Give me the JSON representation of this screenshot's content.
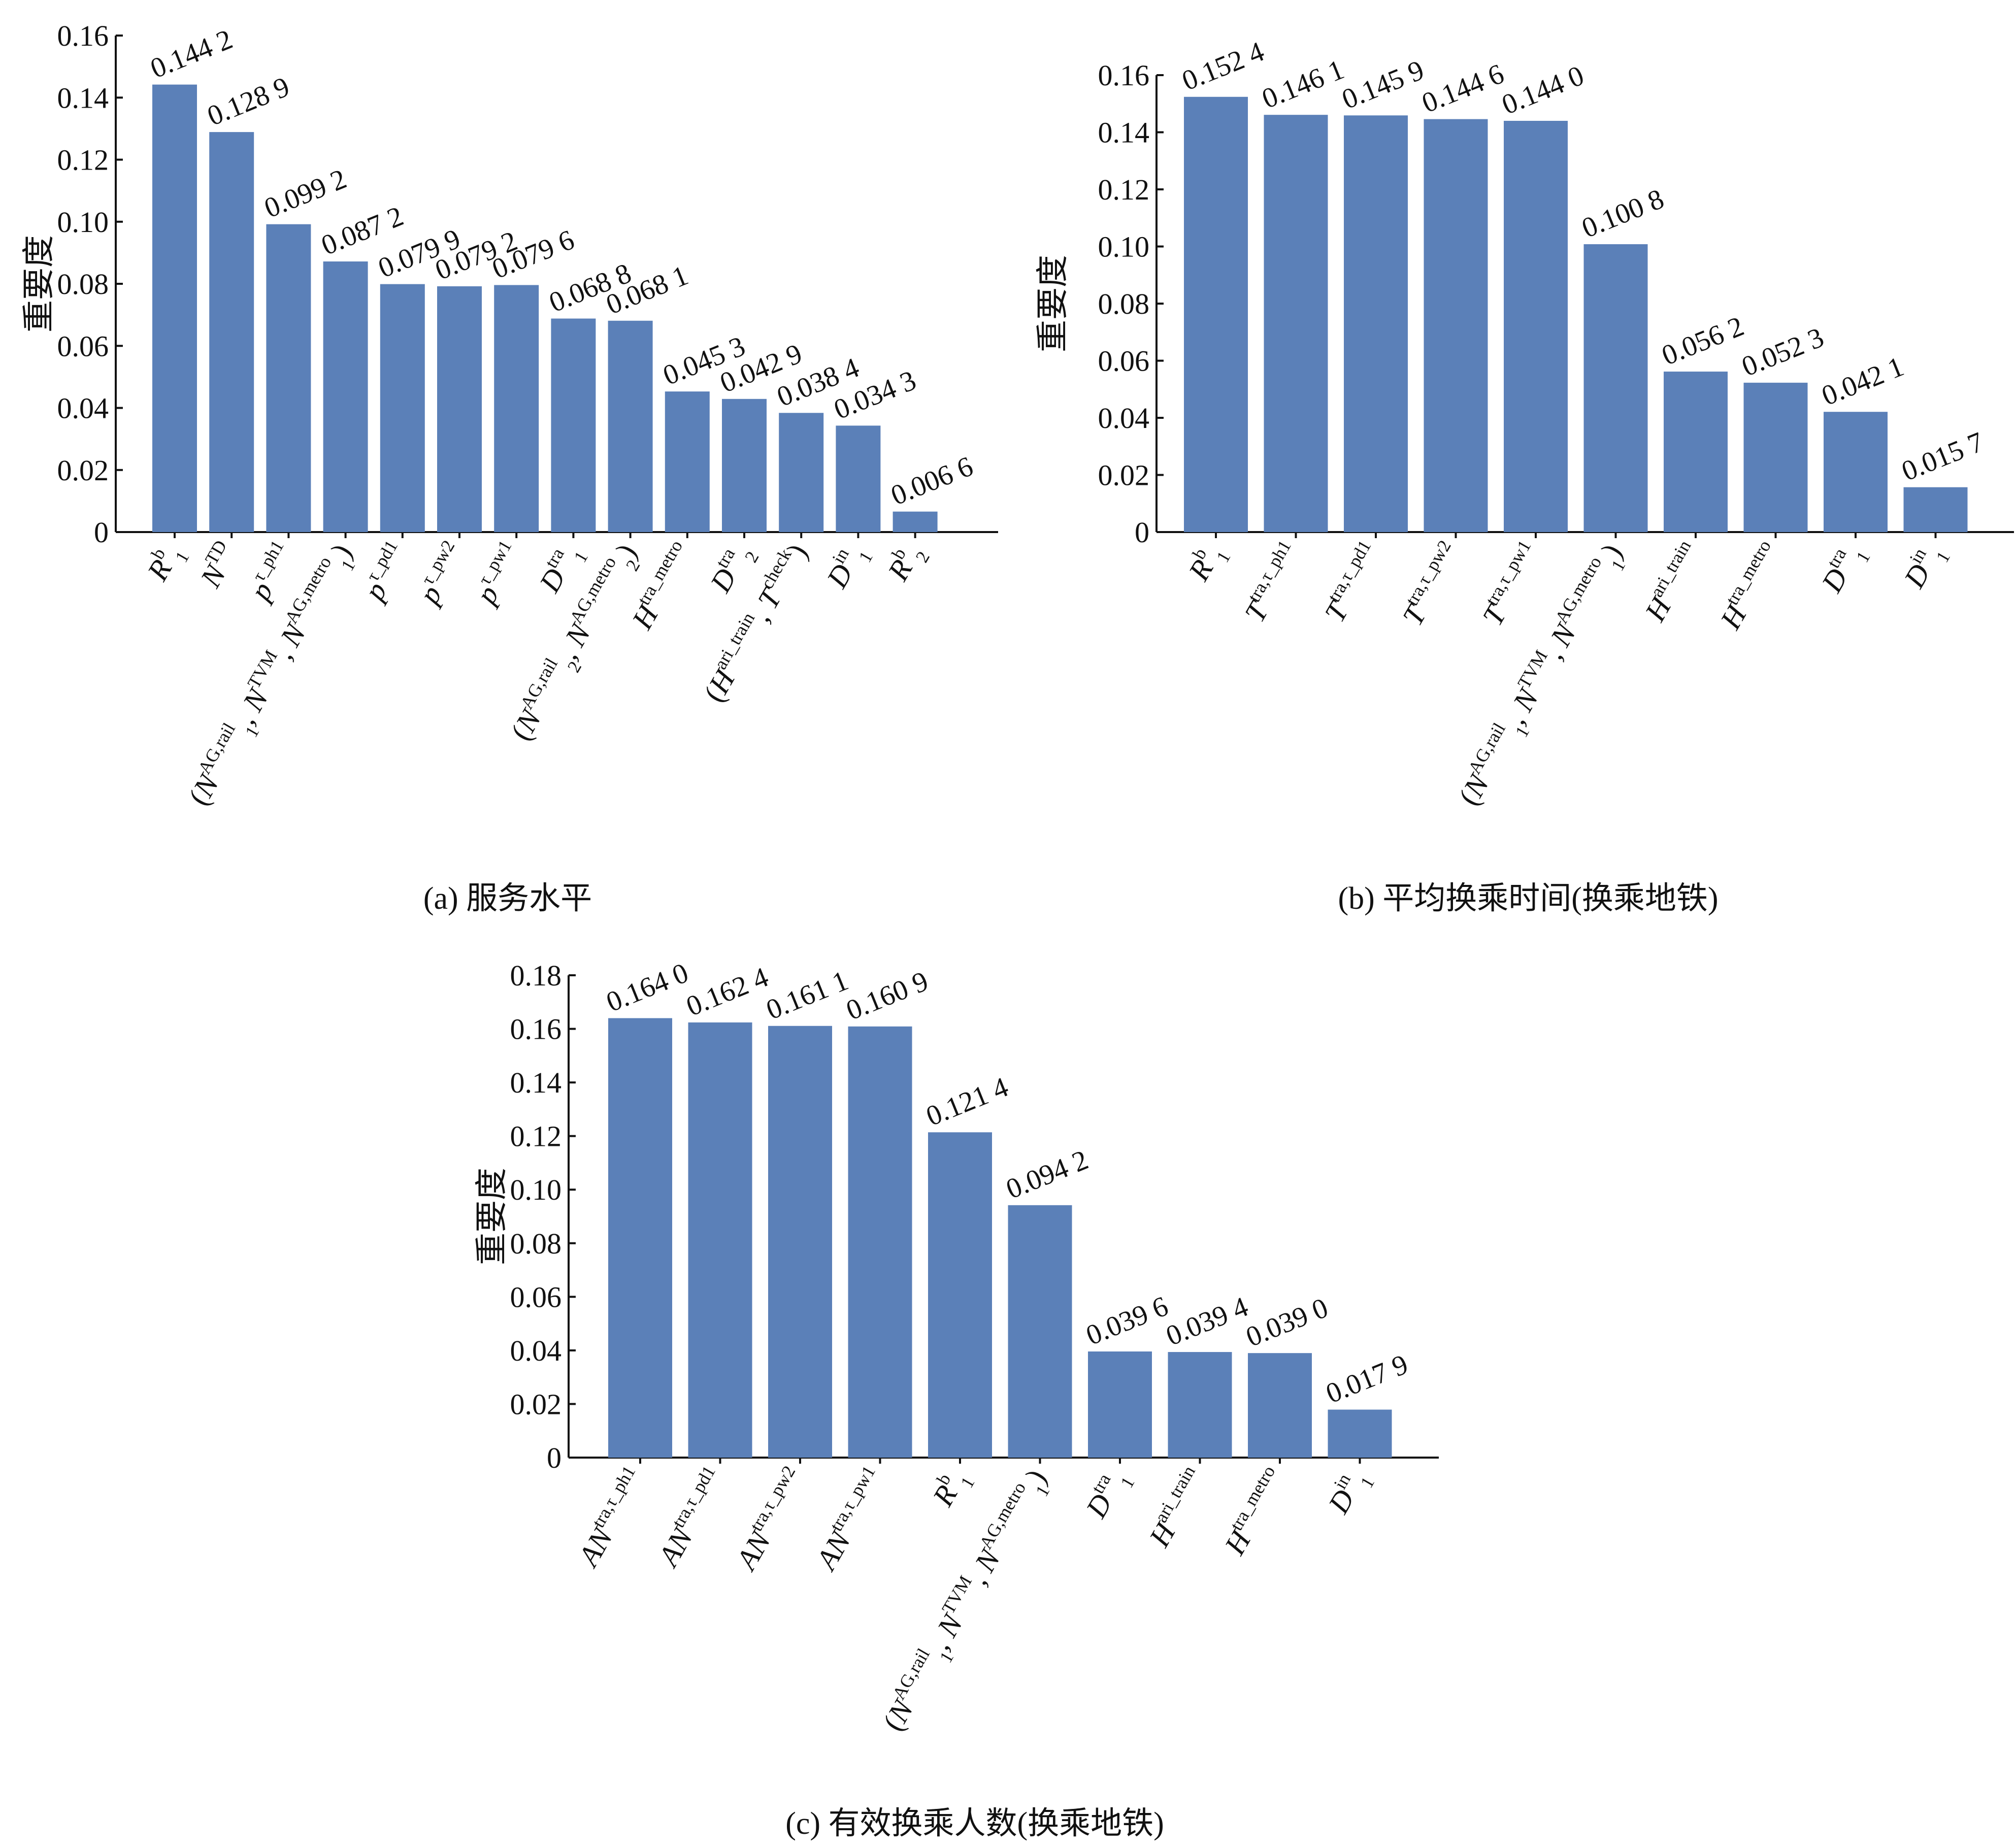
{
  "figure": {
    "background": "#ffffff",
    "bar_color": "#5b80b8",
    "text_color": "#111111"
  },
  "chart_data": [
    {
      "id": "a",
      "type": "bar",
      "caption": "(a) 服务水平",
      "ylabel": "重要度",
      "xlabel": "",
      "ylim": [
        0,
        0.16
      ],
      "yticks": [
        "0",
        "0.02",
        "0.04",
        "0.06",
        "0.08",
        "0.10",
        "0.12",
        "0.14",
        "0.16"
      ],
      "grid": false,
      "categories": [
        {
          "base": "R",
          "sup": "b",
          "sub": "1"
        },
        {
          "base": "N",
          "sup": "TD",
          "sub": ""
        },
        {
          "base": "p",
          "sup": "τ_ph1",
          "sub": ""
        },
        {
          "base": "(N",
          "sup": "AG,rail",
          "sub": "1",
          "tail": ", N",
          "tail_sup": "TVM",
          "tail2": ", N",
          "tail2_sup": "AG,metro",
          "tail2_sub": "1",
          "end": ")"
        },
        {
          "base": "p",
          "sup": "τ_pd1",
          "sub": ""
        },
        {
          "base": "p",
          "sup": "τ_pw2",
          "sub": ""
        },
        {
          "base": "p",
          "sup": "τ_pw1",
          "sub": ""
        },
        {
          "base": "D",
          "sup": "tra",
          "sub": "1"
        },
        {
          "base": "(N",
          "sup": "AG,rail",
          "sub": "2",
          "tail": ", N",
          "tail_sup": "AG,metro",
          "tail_sub": "2",
          "end": ")"
        },
        {
          "base": "H",
          "sup": "tra_metro",
          "sub": ""
        },
        {
          "base": "D",
          "sup": "tra",
          "sub": "2"
        },
        {
          "base": "(H",
          "sup": "ari_train",
          "sub": "",
          "tail": ", T",
          "tail_sup": "check",
          "end": ")"
        },
        {
          "base": "D",
          "sup": "in",
          "sub": "1"
        },
        {
          "base": "R",
          "sup": "b",
          "sub": "2"
        }
      ],
      "values": [
        0.1442,
        0.1289,
        0.0992,
        0.0872,
        0.0799,
        0.0792,
        0.0796,
        0.0688,
        0.0681,
        0.0453,
        0.0429,
        0.0384,
        0.0343,
        0.0066
      ],
      "data_labels": [
        "0.144 2",
        "0.128 9",
        "0.099 2",
        "0.087 2",
        "0.079 9",
        "0.079 2",
        "0.079 6",
        "0.068 8",
        "0.068 1",
        "0.045 3",
        "0.042 9",
        "0.038 4",
        "0.034 3",
        "0.006 6"
      ]
    },
    {
      "id": "b",
      "type": "bar",
      "caption": "(b) 平均换乘时间(换乘地铁)",
      "ylabel": "重要度",
      "xlabel": "",
      "ylim": [
        0,
        0.16
      ],
      "yticks": [
        "0",
        "0.02",
        "0.04",
        "0.06",
        "0.08",
        "0.10",
        "0.12",
        "0.14",
        "0.16"
      ],
      "grid": false,
      "categories": [
        {
          "base": "R",
          "sup": "b",
          "sub": "1"
        },
        {
          "base": "T",
          "sup": "tra,τ_ph1",
          "sub": ""
        },
        {
          "base": "T",
          "sup": "tra,τ_pd1",
          "sub": ""
        },
        {
          "base": "T",
          "sup": "tra,τ_pw2",
          "sub": ""
        },
        {
          "base": "T",
          "sup": "tra,τ_pw1",
          "sub": ""
        },
        {
          "base": "(N",
          "sup": "AG,rail",
          "sub": "1",
          "tail": ", N",
          "tail_sup": "TVM",
          "tail2": ", N",
          "tail2_sup": "AG,metro",
          "tail2_sub": "1",
          "end": ")"
        },
        {
          "base": "H",
          "sup": "ari_train",
          "sub": ""
        },
        {
          "base": "H",
          "sup": "tra_metro",
          "sub": ""
        },
        {
          "base": "D",
          "sup": "tra",
          "sub": "1"
        },
        {
          "base": "D",
          "sup": "in",
          "sub": "1"
        }
      ],
      "values": [
        0.1524,
        0.1461,
        0.1459,
        0.1446,
        0.144,
        0.1008,
        0.0562,
        0.0523,
        0.0421,
        0.0157
      ],
      "data_labels": [
        "0.152 4",
        "0.146 1",
        "0.145 9",
        "0.144 6",
        "0.144 0",
        "0.100 8",
        "0.056 2",
        "0.052 3",
        "0.042 1",
        "0.015 7"
      ]
    },
    {
      "id": "c",
      "type": "bar",
      "caption": "(c) 有效换乘人数(换乘地铁)",
      "ylabel": "重要度",
      "xlabel": "",
      "ylim": [
        0,
        0.18
      ],
      "yticks": [
        "0",
        "0.02",
        "0.04",
        "0.06",
        "0.08",
        "0.10",
        "0.12",
        "0.14",
        "0.16",
        "0.18"
      ],
      "grid": false,
      "categories": [
        {
          "base": "AN",
          "sup": "tra,τ_ph1",
          "sub": ""
        },
        {
          "base": "AN",
          "sup": "tra,τ_pd1",
          "sub": ""
        },
        {
          "base": "AN",
          "sup": "tra,τ_pw2",
          "sub": ""
        },
        {
          "base": "AN",
          "sup": "tra,τ_pw1",
          "sub": ""
        },
        {
          "base": "R",
          "sup": "b",
          "sub": "1"
        },
        {
          "base": "(N",
          "sup": "AG,rail",
          "sub": "1",
          "tail": ", N",
          "tail_sup": "TVM",
          "tail2": ", N",
          "tail2_sup": "AG,metro",
          "tail2_sub": "1",
          "end": ")"
        },
        {
          "base": "D",
          "sup": "tra",
          "sub": "1"
        },
        {
          "base": "H",
          "sup": "ari_train",
          "sub": ""
        },
        {
          "base": "H",
          "sup": "tra_metro",
          "sub": ""
        },
        {
          "base": "D",
          "sup": "in",
          "sub": "1"
        }
      ],
      "values": [
        0.164,
        0.1624,
        0.1611,
        0.1609,
        0.1214,
        0.0942,
        0.0396,
        0.0394,
        0.039,
        0.0179
      ],
      "data_labels": [
        "0.164 0",
        "0.162 4",
        "0.161 1",
        "0.160 9",
        "0.121 4",
        "0.094 2",
        "0.039 6",
        "0.039 4",
        "0.039 0",
        "0.017 9"
      ]
    }
  ]
}
